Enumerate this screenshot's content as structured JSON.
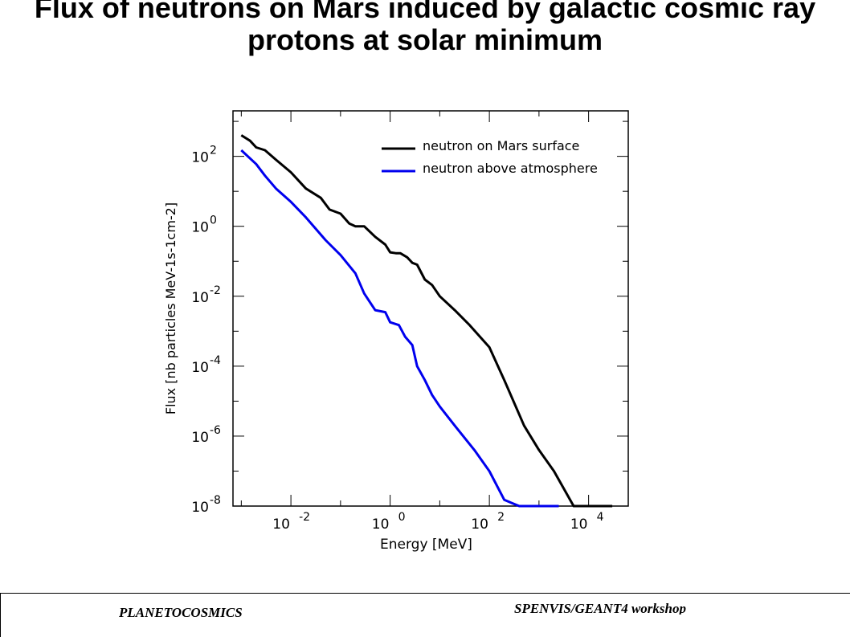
{
  "slide": {
    "title": "Flux of neutrons on Mars  induced by galactic cosmic ray protons at solar minimum",
    "footer_left": "PLANETOCOSMICS",
    "footer_right": "SPENVIS/GEANT4 workshop"
  },
  "chart_data": {
    "type": "line",
    "title": "",
    "xlabel": "Energy [MeV]",
    "ylabel": "Flux [nb particles MeV-1s-1cm-2]",
    "x_scale": "log",
    "y_scale": "log",
    "xlim": [
      0.00068,
      63000
    ],
    "ylim": [
      1e-08,
      2000.0
    ],
    "x_ticks": [
      {
        "value": 0.01,
        "label": "10",
        "exp": "-2"
      },
      {
        "value": 1,
        "label": "10",
        "exp": "0"
      },
      {
        "value": 100,
        "label": "10",
        "exp": "2"
      },
      {
        "value": 10000,
        "label": "10",
        "exp": "4"
      }
    ],
    "y_ticks": [
      {
        "value": 1e-08,
        "label": "10",
        "exp": "-8"
      },
      {
        "value": 1e-06,
        "label": "10",
        "exp": "-6"
      },
      {
        "value": 0.0001,
        "label": "10",
        "exp": "-4"
      },
      {
        "value": 0.01,
        "label": "10",
        "exp": "-2"
      },
      {
        "value": 1,
        "label": "10",
        "exp": "0"
      },
      {
        "value": 100,
        "label": "10",
        "exp": "2"
      }
    ],
    "legend": {
      "position": "top-right"
    },
    "series": [
      {
        "name": "neutron on Mars surface",
        "color": "#000000",
        "x": [
          0.001,
          0.0015,
          0.002,
          0.003,
          0.005,
          0.01,
          0.02,
          0.04,
          0.06,
          0.1,
          0.15,
          0.2,
          0.3,
          0.5,
          0.8,
          1.0,
          1.3,
          1.6,
          2.2,
          2.8,
          3.5,
          5.0,
          7.0,
          10,
          20,
          40,
          100,
          200,
          500,
          1000,
          2000,
          5000,
          10000,
          20000,
          30000
        ],
        "y": [
          400,
          280,
          180,
          150,
          80,
          35,
          12,
          6.5,
          3.0,
          2.3,
          1.2,
          1.0,
          1.0,
          0.5,
          0.3,
          0.18,
          0.17,
          0.17,
          0.13,
          0.09,
          0.08,
          0.03,
          0.021,
          0.01,
          0.004,
          0.0015,
          0.00035,
          4e-05,
          2e-06,
          4e-07,
          1e-07,
          1e-08,
          1e-08,
          1e-08,
          1e-08
        ]
      },
      {
        "name": "neutron above atmosphere",
        "color": "#0000ee",
        "x": [
          0.001,
          0.002,
          0.003,
          0.005,
          0.01,
          0.02,
          0.05,
          0.1,
          0.2,
          0.3,
          0.5,
          0.8,
          1.0,
          1.5,
          2.0,
          2.8,
          3.5,
          5.0,
          7.0,
          10,
          20,
          50,
          100,
          200,
          400,
          700,
          1000,
          1500,
          2000,
          2500
        ],
        "y": [
          150,
          60,
          28,
          12,
          5,
          1.8,
          0.4,
          0.15,
          0.045,
          0.012,
          0.004,
          0.0035,
          0.0018,
          0.0015,
          0.0007,
          0.0004,
          0.0001,
          4e-05,
          1.5e-05,
          7e-06,
          2e-06,
          4e-07,
          1e-07,
          1.5e-08,
          1e-08,
          1e-08,
          1e-08,
          1e-08,
          1e-08,
          1e-08
        ]
      }
    ]
  }
}
